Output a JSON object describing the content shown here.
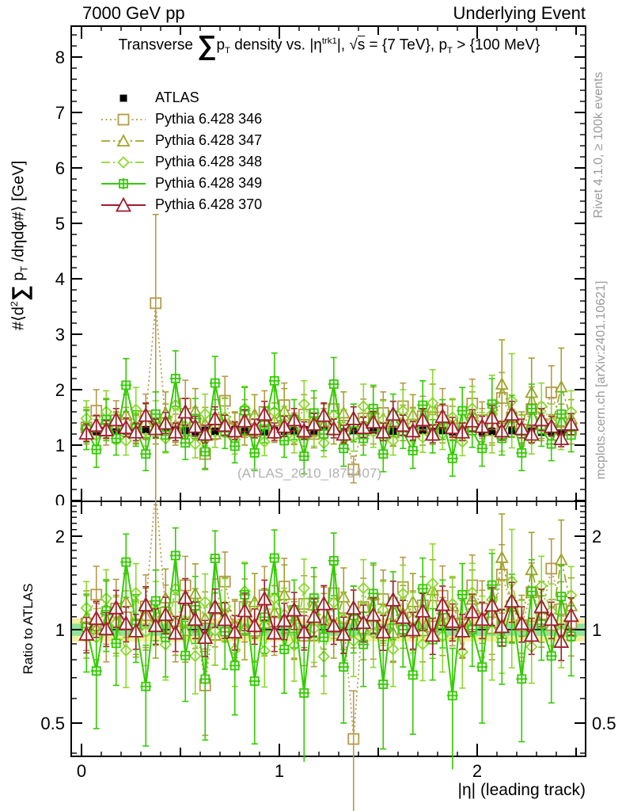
{
  "header": {
    "left": "7000 GeV pp",
    "right": "Underlying Event"
  },
  "title": {
    "pre": "Transverse ",
    "sum": "∑",
    "p1": "p",
    "sub1": "T",
    "mid1": " density vs. |η",
    "sup1": "trk1",
    "mid2": "|, ",
    "sqrt": "√",
    "sqrt_arg": "s",
    "mid3": " = {7 TeV}, ",
    "p2": "p",
    "sub2": "T",
    "post": " > {100 MeV}"
  },
  "watermark": "(ATLAS_2010_I879407)",
  "side_notes": {
    "top": "Rivet 4.1.0, ≥ 100k events",
    "bottom": "mcplots.cern.ch [arXiv:2401.10621]"
  },
  "axis_labels": {
    "y_main": {
      "a": "#⟨d",
      "a_sup": "2",
      "sum": "∑",
      "b": " p",
      "b_sub": "T",
      "c": " /dηdφ#⟩ [GeV]"
    },
    "y_ratio": "Ratio to ATLAS",
    "x": "|η| (leading track)"
  },
  "chart_data": {
    "type": "scatter",
    "x_axis": {
      "min": -0.052,
      "max": 2.548,
      "ticks": [
        {
          "v": 0,
          "l": "0"
        },
        {
          "v": 1,
          "l": "1"
        },
        {
          "v": 2,
          "l": "2"
        }
      ]
    },
    "y_main_axis": {
      "min": 0,
      "max": 8.55,
      "ticks": [
        {
          "v": 0,
          "l": "0"
        },
        {
          "v": 1,
          "l": "1"
        },
        {
          "v": 2,
          "l": "2"
        },
        {
          "v": 3,
          "l": "3"
        },
        {
          "v": 4,
          "l": "4"
        },
        {
          "v": 5,
          "l": "5"
        },
        {
          "v": 6,
          "l": "6"
        },
        {
          "v": 7,
          "l": "7"
        },
        {
          "v": 8,
          "l": "8"
        }
      ]
    },
    "ratio_axis": {
      "min": 0.39,
      "max": 2.59,
      "log": true,
      "ticks": [
        {
          "v": 0.5,
          "l": "0.5"
        },
        {
          "v": 1,
          "l": "1"
        },
        {
          "v": 2,
          "l": "2"
        }
      ]
    },
    "ratio_bands": {
      "yellow": 0.085,
      "green": 0.045,
      "yellow_color": "#f4efa0",
      "green_color": "#8fe39a"
    },
    "x": [
      0.025,
      0.075,
      0.125,
      0.175,
      0.225,
      0.275,
      0.325,
      0.375,
      0.425,
      0.475,
      0.525,
      0.575,
      0.625,
      0.675,
      0.725,
      0.775,
      0.825,
      0.875,
      0.925,
      0.975,
      1.025,
      1.075,
      1.125,
      1.175,
      1.225,
      1.275,
      1.325,
      1.375,
      1.425,
      1.475,
      1.525,
      1.575,
      1.625,
      1.675,
      1.725,
      1.775,
      1.825,
      1.875,
      1.925,
      1.975,
      2.025,
      2.075,
      2.125,
      2.175,
      2.225,
      2.275,
      2.325,
      2.375,
      2.425,
      2.475
    ],
    "series": [
      {
        "name": "ATLAS",
        "color": "#000000",
        "marker": "filled-square",
        "marker_size": 9,
        "line": "none",
        "line_width": 0,
        "values": [
          1.26,
          1.25,
          1.27,
          1.24,
          1.26,
          1.25,
          1.28,
          1.26,
          1.25,
          1.27,
          1.26,
          1.24,
          1.27,
          1.25,
          1.26,
          1.28,
          1.25,
          1.26,
          1.24,
          1.27,
          1.25,
          1.26,
          1.28,
          1.25,
          1.27,
          1.26,
          1.24,
          1.26,
          1.25,
          1.27,
          1.26,
          1.25,
          1.24,
          1.26,
          1.27,
          1.25,
          1.26,
          1.24,
          1.25,
          1.26,
          1.24,
          1.25,
          1.23,
          1.26,
          1.24,
          1.25,
          1.23,
          1.24,
          1.22,
          1.24
        ],
        "errors": [
          0.05,
          0.05,
          0.05,
          0.05,
          0.05,
          0.05,
          0.05,
          0.05,
          0.05,
          0.05,
          0.05,
          0.05,
          0.05,
          0.05,
          0.05,
          0.05,
          0.05,
          0.05,
          0.05,
          0.05,
          0.05,
          0.05,
          0.05,
          0.05,
          0.05,
          0.05,
          0.05,
          0.05,
          0.05,
          0.05,
          0.05,
          0.05,
          0.05,
          0.05,
          0.05,
          0.05,
          0.05,
          0.05,
          0.05,
          0.05,
          0.05,
          0.05,
          0.05,
          0.05,
          0.05,
          0.05,
          0.05,
          0.05,
          0.05,
          0.05
        ]
      },
      {
        "name": "Pythia 6.428 346",
        "color": "#b59a4a",
        "marker": "open-square",
        "marker_size": 13,
        "line": "dotted",
        "line_width": 1.7,
        "values": [
          1.32,
          1.62,
          1.28,
          1.45,
          1.38,
          1.3,
          1.52,
          3.56,
          1.42,
          1.28,
          1.75,
          1.38,
          0.84,
          1.46,
          1.8,
          1.3,
          1.48,
          1.25,
          1.6,
          1.35,
          1.72,
          1.3,
          1.55,
          1.2,
          1.42,
          1.65,
          1.35,
          0.56,
          1.48,
          1.3,
          1.58,
          1.25,
          1.7,
          1.38,
          1.52,
          1.28,
          1.62,
          1.4,
          1.3,
          1.75,
          1.45,
          1.32,
          1.85,
          1.5,
          1.28,
          1.65,
          1.38,
          1.95,
          1.42,
          1.3
        ],
        "errors": [
          0.3,
          0.38,
          0.28,
          0.35,
          0.3,
          0.26,
          0.4,
          1.6,
          0.32,
          0.28,
          0.42,
          0.3,
          0.26,
          0.36,
          0.44,
          0.28,
          0.34,
          0.26,
          0.38,
          0.3,
          0.4,
          0.28,
          0.36,
          0.25,
          0.32,
          0.38,
          0.28,
          0.24,
          0.35,
          0.28,
          0.38,
          0.26,
          0.42,
          0.3,
          0.36,
          0.27,
          0.4,
          0.3,
          0.28,
          0.44,
          0.33,
          0.28,
          0.46,
          0.35,
          0.27,
          0.4,
          0.3,
          0.48,
          0.32,
          0.28
        ]
      },
      {
        "name": "Pythia 6.428 347",
        "color": "#a2a22a",
        "marker": "open-triangle",
        "marker_size": 12,
        "line": "dashdot",
        "line_width": 1.7,
        "values": [
          1.38,
          1.26,
          1.48,
          1.32,
          1.55,
          1.28,
          1.42,
          1.3,
          1.58,
          1.35,
          1.25,
          1.62,
          1.38,
          1.2,
          1.5,
          1.32,
          1.26,
          1.55,
          1.3,
          1.44,
          1.62,
          1.28,
          1.22,
          1.5,
          1.36,
          1.28,
          1.58,
          1.42,
          1.26,
          1.65,
          1.48,
          1.22,
          1.4,
          1.55,
          1.26,
          1.68,
          1.32,
          1.48,
          1.28,
          1.58,
          1.36,
          1.26,
          2.1,
          1.5,
          1.32,
          1.95,
          1.44,
          1.28,
          2.05,
          1.48
        ],
        "errors": [
          0.3,
          0.26,
          0.34,
          0.28,
          0.36,
          0.26,
          0.32,
          0.28,
          0.38,
          0.3,
          0.26,
          0.4,
          0.3,
          0.24,
          0.35,
          0.28,
          0.26,
          0.36,
          0.28,
          0.32,
          0.4,
          0.27,
          0.24,
          0.35,
          0.3,
          0.26,
          0.38,
          0.32,
          0.26,
          0.4,
          0.34,
          0.24,
          0.32,
          0.36,
          0.26,
          0.42,
          0.28,
          0.34,
          0.27,
          0.38,
          0.3,
          0.26,
          0.8,
          0.35,
          0.28,
          0.62,
          0.32,
          0.27,
          0.7,
          0.34
        ]
      },
      {
        "name": "Pythia 6.428 348",
        "color": "#8cd82e",
        "marker": "open-diamond",
        "marker_size": 11,
        "line": "dashdot",
        "line_width": 1.7,
        "values": [
          1.48,
          1.18,
          1.6,
          1.3,
          1.08,
          1.64,
          1.26,
          1.46,
          1.12,
          1.72,
          1.34,
          1.02,
          1.56,
          1.24,
          1.5,
          1.1,
          1.66,
          1.28,
          1.06,
          1.6,
          1.4,
          1.12,
          1.74,
          1.26,
          1.04,
          1.54,
          1.34,
          1.16,
          1.7,
          1.24,
          1.46,
          1.08,
          1.62,
          1.36,
          1.14,
          1.76,
          1.2,
          1.5,
          1.06,
          1.66,
          1.3,
          1.56,
          1.16,
          1.8,
          1.26,
          1.1,
          1.7,
          1.42,
          1.2,
          1.6
        ],
        "errors": [
          0.32,
          0.28,
          0.38,
          0.28,
          0.26,
          0.4,
          0.28,
          0.34,
          0.26,
          0.42,
          0.3,
          0.25,
          0.36,
          0.28,
          0.34,
          0.26,
          0.4,
          0.28,
          0.25,
          0.38,
          0.3,
          0.26,
          0.42,
          0.28,
          0.25,
          0.36,
          0.3,
          0.27,
          0.4,
          0.28,
          0.34,
          0.26,
          0.38,
          0.3,
          0.27,
          0.6,
          0.28,
          0.34,
          0.25,
          0.4,
          0.29,
          0.7,
          0.27,
          0.85,
          0.28,
          0.26,
          0.42,
          0.32,
          0.28,
          0.38
        ]
      },
      {
        "name": "Pythia 6.428 349",
        "color": "#33cc00",
        "marker": "square-plus",
        "marker_size": 10,
        "line": "solid",
        "line_width": 2,
        "values": [
          1.28,
          0.92,
          1.46,
          1.12,
          2.08,
          1.3,
          0.84,
          1.56,
          1.18,
          2.2,
          1.04,
          1.48,
          0.88,
          2.12,
          1.24,
          0.98,
          1.62,
          0.86,
          1.36,
          2.16,
          1.08,
          1.46,
          0.8,
          1.58,
          1.2,
          2.1,
          0.94,
          1.4,
          1.12,
          1.66,
          0.84,
          1.54,
          1.24,
          0.9,
          1.72,
          1.16,
          1.46,
          0.76,
          1.62,
          1.26,
          0.94,
          1.74,
          1.12,
          1.52,
          0.86,
          1.66,
          1.28,
          1.02,
          1.56,
          1.18
        ],
        "errors": [
          0.36,
          0.32,
          0.38,
          0.3,
          0.48,
          0.32,
          0.3,
          0.4,
          0.3,
          0.5,
          0.3,
          0.36,
          0.32,
          0.48,
          0.3,
          0.3,
          0.42,
          0.32,
          0.32,
          0.5,
          0.3,
          0.36,
          0.32,
          0.4,
          0.3,
          0.48,
          0.32,
          0.34,
          0.3,
          0.42,
          0.32,
          0.38,
          0.3,
          0.32,
          0.44,
          0.3,
          0.36,
          0.32,
          0.42,
          0.3,
          0.32,
          0.46,
          0.3,
          0.38,
          0.32,
          0.44,
          0.3,
          0.3,
          0.4,
          0.3
        ]
      },
      {
        "name": "Pythia 6.428 370",
        "color": "#a01a2e",
        "marker": "open-triangle",
        "marker_size": 15,
        "line": "solid",
        "line_width": 2,
        "values": [
          1.22,
          1.36,
          1.28,
          1.46,
          1.32,
          1.24,
          1.54,
          1.3,
          1.4,
          1.24,
          1.6,
          1.34,
          1.2,
          1.48,
          1.36,
          1.26,
          1.44,
          1.3,
          1.56,
          1.24,
          1.34,
          1.46,
          1.26,
          1.38,
          1.54,
          1.3,
          1.2,
          1.48,
          1.32,
          1.42,
          1.24,
          1.56,
          1.36,
          1.26,
          1.46,
          1.2,
          1.52,
          1.32,
          1.24,
          1.44,
          1.34,
          1.5,
          1.26,
          1.56,
          1.3,
          1.2,
          1.46,
          1.34,
          1.12,
          1.38
        ],
        "errors": [
          0.16,
          0.18,
          0.16,
          0.2,
          0.17,
          0.16,
          0.22,
          0.17,
          0.19,
          0.16,
          0.24,
          0.18,
          0.16,
          0.21,
          0.18,
          0.16,
          0.2,
          0.17,
          0.23,
          0.16,
          0.18,
          0.2,
          0.16,
          0.19,
          0.22,
          0.17,
          0.16,
          0.21,
          0.18,
          0.19,
          0.16,
          0.23,
          0.18,
          0.17,
          0.2,
          0.16,
          0.22,
          0.18,
          0.16,
          0.2,
          0.18,
          0.21,
          0.17,
          0.23,
          0.17,
          0.16,
          0.2,
          0.18,
          0.15,
          0.19
        ]
      }
    ]
  }
}
